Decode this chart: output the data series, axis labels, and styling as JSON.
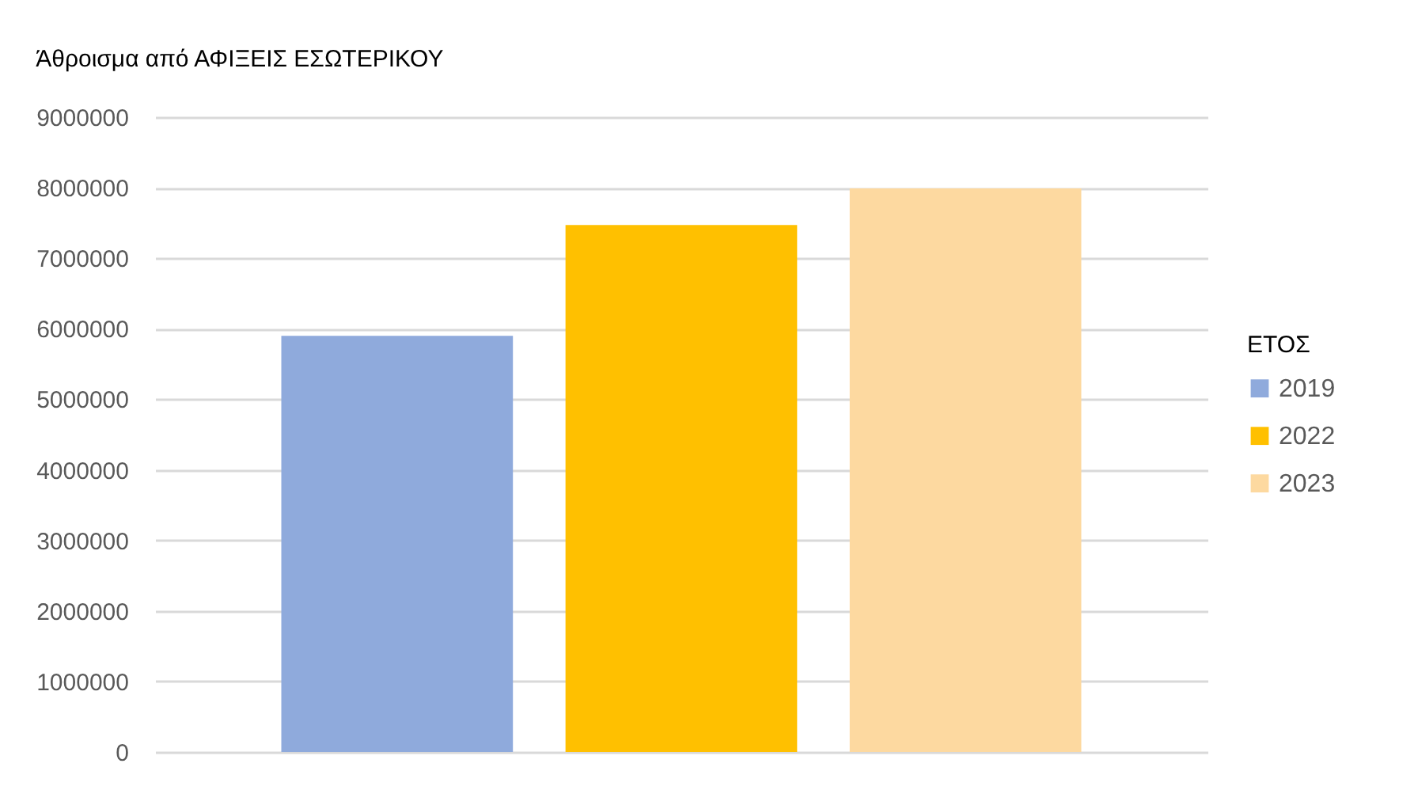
{
  "chart_data": {
    "type": "bar",
    "title": "Άθροισμα από ΑΦΙΞΕΙΣ ΕΣΩΤΕΡΙΚΟΥ",
    "categories": [
      null
    ],
    "series": [
      {
        "name": "2019",
        "color": "#8faadc",
        "values": [
          5900000
        ]
      },
      {
        "name": "2022",
        "color": "#ffc000",
        "values": [
          7470000
        ]
      },
      {
        "name": "2023",
        "color": "#fdd9a0",
        "values": [
          7990000
        ]
      }
    ],
    "legend_title": "ΕΤΟΣ",
    "legend": "right",
    "ylim": [
      0,
      9000000
    ],
    "yticks": [
      0,
      1000000,
      2000000,
      3000000,
      4000000,
      5000000,
      6000000,
      7000000,
      8000000,
      9000000
    ],
    "grid": "y",
    "tick_labels": "y"
  }
}
